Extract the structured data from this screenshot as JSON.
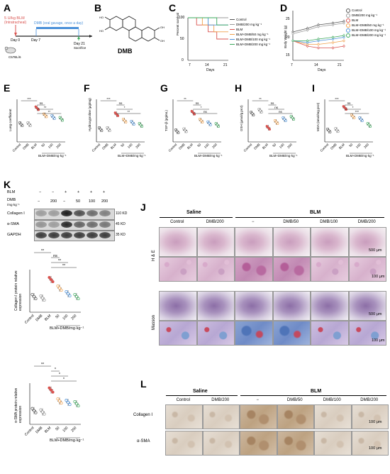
{
  "panels": {
    "A": "A",
    "B": "B",
    "C": "C",
    "D": "D",
    "E": "E",
    "F": "F",
    "G": "G",
    "H": "H",
    "I": "I",
    "J": "J",
    "K": "K",
    "L": "L"
  },
  "panel_a": {
    "blm_text": "5 U/kg BLM",
    "blm_route": "(Intratracheal)",
    "dmb_text": "DMB (oral gavage, once a day)",
    "day0": "Day 0",
    "day7": "Day 7",
    "day21": "Day 21",
    "sacrifice": "Sacrifice",
    "mouse": "C57BL/6"
  },
  "panel_b": {
    "compound": "DMB"
  },
  "panel_c": {
    "ylabel": "Percent survival",
    "xlabel": "Days",
    "xticks": [
      "7",
      "14",
      "21"
    ],
    "yticks": [
      "0",
      "50",
      "100"
    ]
  },
  "panel_d": {
    "ylabel": "Body Weight (g)",
    "xlabel": "Days",
    "xticks": [
      "7",
      "14",
      "21"
    ],
    "yticks": [
      "15",
      "20",
      "25"
    ]
  },
  "legend_c": [
    "Control",
    "DMB/200 mg kg⁻¹",
    "BLM",
    "BLM+DMB/50 mg kg⁻¹",
    "BLM+DMB/100 mg kg⁻¹",
    "BLM+DMB/200 mg kg⁻¹"
  ],
  "legend_d": [
    "Control",
    "DMB/200 mg kg⁻¹",
    "BLM",
    "BLM+DMB/50 mg kg⁻¹",
    "BLM+DMB/100 mg kg⁻¹",
    "BLM+DMB/200 mg kg⁻¹"
  ],
  "colors": {
    "control": "#555555",
    "dmb": "#999999",
    "blm": "#d9534f",
    "dmb50": "#f0a04b",
    "dmb100": "#4a90d9",
    "dmb200": "#3aa85a"
  },
  "bar_panels": {
    "E": {
      "ylabel": "Lung coefficient",
      "sig": [
        "***",
        "ns",
        "**",
        "**"
      ]
    },
    "F": {
      "ylabel": "Hydroxyproline (μg/mg)",
      "sig": [
        "***",
        "ns",
        "*",
        "**"
      ]
    },
    "G": {
      "ylabel": "TGF-β (pg/mL)",
      "sig": [
        "**",
        "ns",
        "*",
        "ns"
      ]
    },
    "H": {
      "ylabel": "GSH (μmol/g prot)",
      "sig": [
        "**",
        "ns",
        "ns",
        "ns"
      ]
    },
    "I": {
      "ylabel": "MDA (nmol/mg prot)",
      "sig": [
        "***",
        "ns",
        "*",
        "***"
      ]
    }
  },
  "group_labels": [
    "Control",
    "DMB",
    "BLM",
    "50",
    "100",
    "200"
  ],
  "blm_dmb_label": "BLM+DMB/mg·kg⁻¹",
  "panel_k": {
    "blm_row": "BLM",
    "dmb_row": "DMB",
    "dmb_unit": "/mg·kg⁻¹",
    "blm_signs": [
      "−",
      "−",
      "+",
      "+",
      "+",
      "+"
    ],
    "dmb_vals": [
      "−",
      "200",
      "−",
      "50",
      "100",
      "200"
    ],
    "rows": [
      "Collagen I",
      "α-SMA",
      "GAPDH"
    ],
    "kd": [
      "110 KD",
      "45 KD",
      "35 KD"
    ],
    "ylabel1": "Collagen I protein relative expression",
    "ylabel2": "α-SMA protein relative expression",
    "sig1": [
      "**",
      "ns",
      "**",
      "**"
    ],
    "sig2": [
      "**",
      "*",
      "*",
      "*"
    ]
  },
  "panel_j": {
    "saline": "Saline",
    "blm": "BLM",
    "cols": [
      "Control",
      "DMB/200",
      "−",
      "DMB/50",
      "DMB/100",
      "DMB/200"
    ],
    "he": "H & E",
    "masson": "Masson",
    "scale1": "500 μm",
    "scale2": "100 μm"
  },
  "panel_l": {
    "saline": "Saline",
    "blm": "BLM",
    "cols": [
      "Control",
      "DMB/200",
      "−",
      "DMB/50",
      "DMB/100",
      "DMB/200"
    ],
    "rows": [
      "Collagen I",
      "α-SMA"
    ],
    "scale": "100 μm"
  },
  "chart_data": [
    {
      "type": "line",
      "panel": "C",
      "ylabel": "Percent survival",
      "xlabel": "Days",
      "xlim": [
        7,
        21
      ],
      "ylim": [
        0,
        100
      ],
      "series": [
        {
          "name": "Control",
          "x": [
            7,
            21
          ],
          "y": [
            100,
            100
          ]
        },
        {
          "name": "DMB/200 mg kg⁻¹",
          "x": [
            7,
            21
          ],
          "y": [
            100,
            100
          ]
        },
        {
          "name": "BLM",
          "x": [
            7,
            10,
            14,
            17,
            21
          ],
          "y": [
            100,
            83,
            67,
            50,
            50
          ]
        },
        {
          "name": "BLM+DMB/50 mg kg⁻¹",
          "x": [
            7,
            12,
            16,
            21
          ],
          "y": [
            100,
            83,
            67,
            67
          ]
        },
        {
          "name": "BLM+DMB/100 mg kg⁻¹",
          "x": [
            7,
            14,
            21
          ],
          "y": [
            100,
            83,
            83
          ]
        },
        {
          "name": "BLM+DMB/200 mg kg⁻¹",
          "x": [
            7,
            17,
            21
          ],
          "y": [
            100,
            83,
            83
          ]
        }
      ]
    },
    {
      "type": "line",
      "panel": "D",
      "ylabel": "Body Weight (g)",
      "xlabel": "Days",
      "xlim": [
        7,
        21
      ],
      "ylim": [
        13,
        27
      ],
      "series": [
        {
          "name": "Control",
          "x": [
            7,
            11,
            14,
            18,
            21
          ],
          "y": [
            21,
            22,
            23,
            23.5,
            24
          ]
        },
        {
          "name": "DMB/200 mg kg⁻¹",
          "x": [
            7,
            11,
            14,
            18,
            21
          ],
          "y": [
            20.5,
            21.5,
            22.5,
            23,
            23.5
          ]
        },
        {
          "name": "BLM",
          "x": [
            7,
            11,
            14,
            18,
            21
          ],
          "y": [
            18.5,
            17,
            16.5,
            16.5,
            17
          ]
        },
        {
          "name": "BLM+DMB/50 mg kg⁻¹",
          "x": [
            7,
            11,
            14,
            18,
            21
          ],
          "y": [
            18.5,
            17.5,
            17.5,
            18,
            18.5
          ]
        },
        {
          "name": "BLM+DMB/100 mg kg⁻¹",
          "x": [
            7,
            11,
            14,
            18,
            21
          ],
          "y": [
            18.5,
            18,
            18.5,
            19,
            19.5
          ]
        },
        {
          "name": "BLM+DMB/200 mg kg⁻¹",
          "x": [
            7,
            11,
            14,
            18,
            21
          ],
          "y": [
            18.5,
            18.5,
            19,
            19.5,
            20
          ]
        }
      ]
    },
    {
      "type": "bar",
      "panel": "E",
      "categories": [
        "Control",
        "DMB",
        "BLM",
        "50",
        "100",
        "200"
      ],
      "values": [
        0.5,
        0.5,
        0.95,
        0.75,
        0.7,
        0.65
      ],
      "ylim": [
        0,
        1.2
      ]
    },
    {
      "type": "bar",
      "panel": "F",
      "categories": [
        "Control",
        "DMB",
        "BLM",
        "50",
        "100",
        "200"
      ],
      "values": [
        0.3,
        0.3,
        0.65,
        0.5,
        0.45,
        0.4
      ],
      "ylim": [
        0,
        1
      ]
    },
    {
      "type": "bar",
      "panel": "G",
      "categories": [
        "Control",
        "DMB",
        "BLM",
        "50",
        "100",
        "200"
      ],
      "values": [
        20,
        22,
        55,
        40,
        35,
        32
      ],
      "ylim": [
        0,
        80
      ]
    },
    {
      "type": "bar",
      "panel": "H",
      "categories": [
        "Control",
        "DMB",
        "BLM",
        "50",
        "100",
        "200"
      ],
      "values": [
        10,
        11,
        5,
        7,
        8,
        8.5
      ],
      "ylim": [
        0,
        15
      ]
    },
    {
      "type": "bar",
      "panel": "I",
      "categories": [
        "Control",
        "DMB",
        "BLM",
        "50",
        "100",
        "200"
      ],
      "values": [
        4,
        4.2,
        12,
        9,
        8,
        6
      ],
      "ylim": [
        0,
        15
      ]
    },
    {
      "type": "scatter",
      "panel": "K1",
      "categories": [
        "Control",
        "DMB",
        "BLM",
        "50",
        "100",
        "200"
      ],
      "values": [
        0.55,
        0.5,
        1.15,
        0.85,
        0.65,
        0.55
      ],
      "ylim": [
        0,
        1.5
      ]
    },
    {
      "type": "scatter",
      "panel": "K2",
      "categories": [
        "Control",
        "DMB",
        "BLM",
        "50",
        "100",
        "200"
      ],
      "values": [
        0.5,
        0.45,
        1.25,
        0.85,
        0.8,
        0.75
      ],
      "ylim": [
        0,
        1.5
      ]
    }
  ]
}
